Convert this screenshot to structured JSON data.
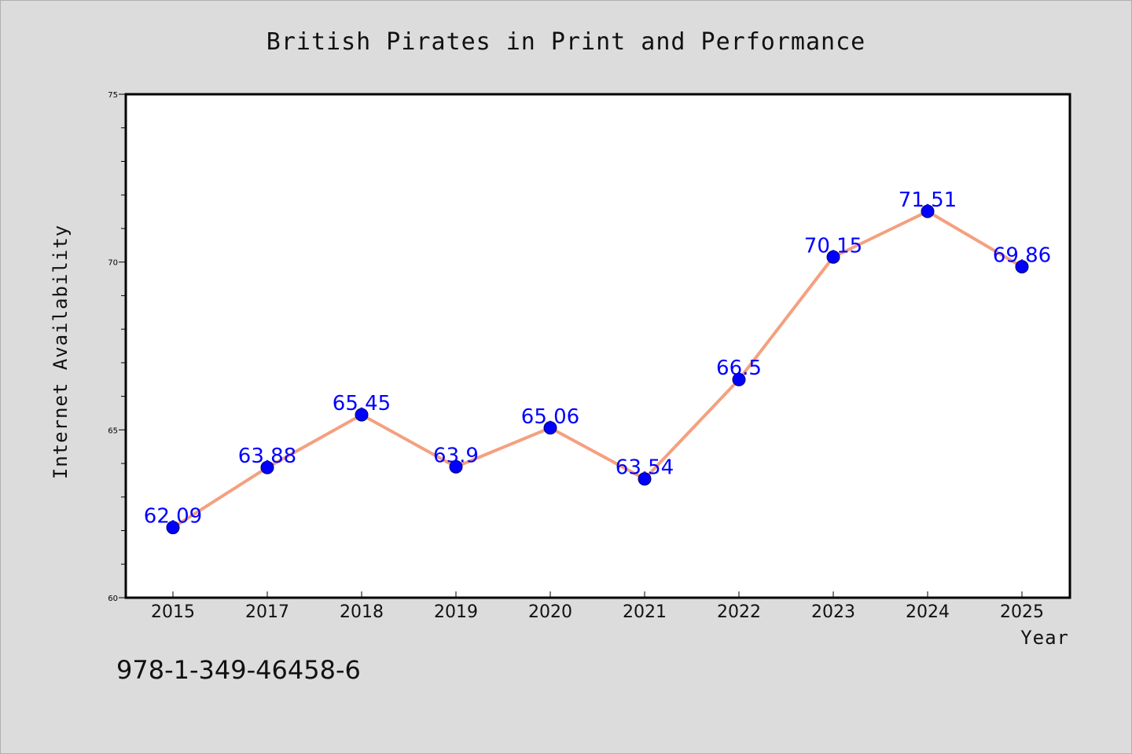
{
  "chart_data": {
    "type": "line",
    "title": "British Pirates in Print and Performance",
    "xlabel": "Year",
    "ylabel": "Internet Availability",
    "categories": [
      "2015",
      "2017",
      "2018",
      "2019",
      "2020",
      "2021",
      "2022",
      "2023",
      "2024",
      "2025"
    ],
    "series": [
      {
        "values": [
          62.09,
          63.88,
          65.45,
          63.9,
          65.06,
          63.54,
          66.5,
          70.15,
          71.51,
          69.86
        ],
        "labels": [
          "62.09",
          "63.88",
          "65.45",
          "63.9",
          "65.06",
          "63.54",
          "66.5",
          "70.15",
          "71.51",
          "69.86"
        ],
        "line_color": "#f4a07f",
        "marker_color": "#0000ff",
        "label_color": "#0000ff"
      }
    ],
    "ylim": [
      60,
      75
    ],
    "yticks": [
      "60",
      "65",
      "70",
      "75"
    ],
    "grid": false,
    "legend": "none"
  },
  "annotation": {
    "isbn": "978-1-349-46458-6"
  },
  "colors": {
    "background": "#dcdcdc",
    "plot_background": "#ffffff"
  }
}
